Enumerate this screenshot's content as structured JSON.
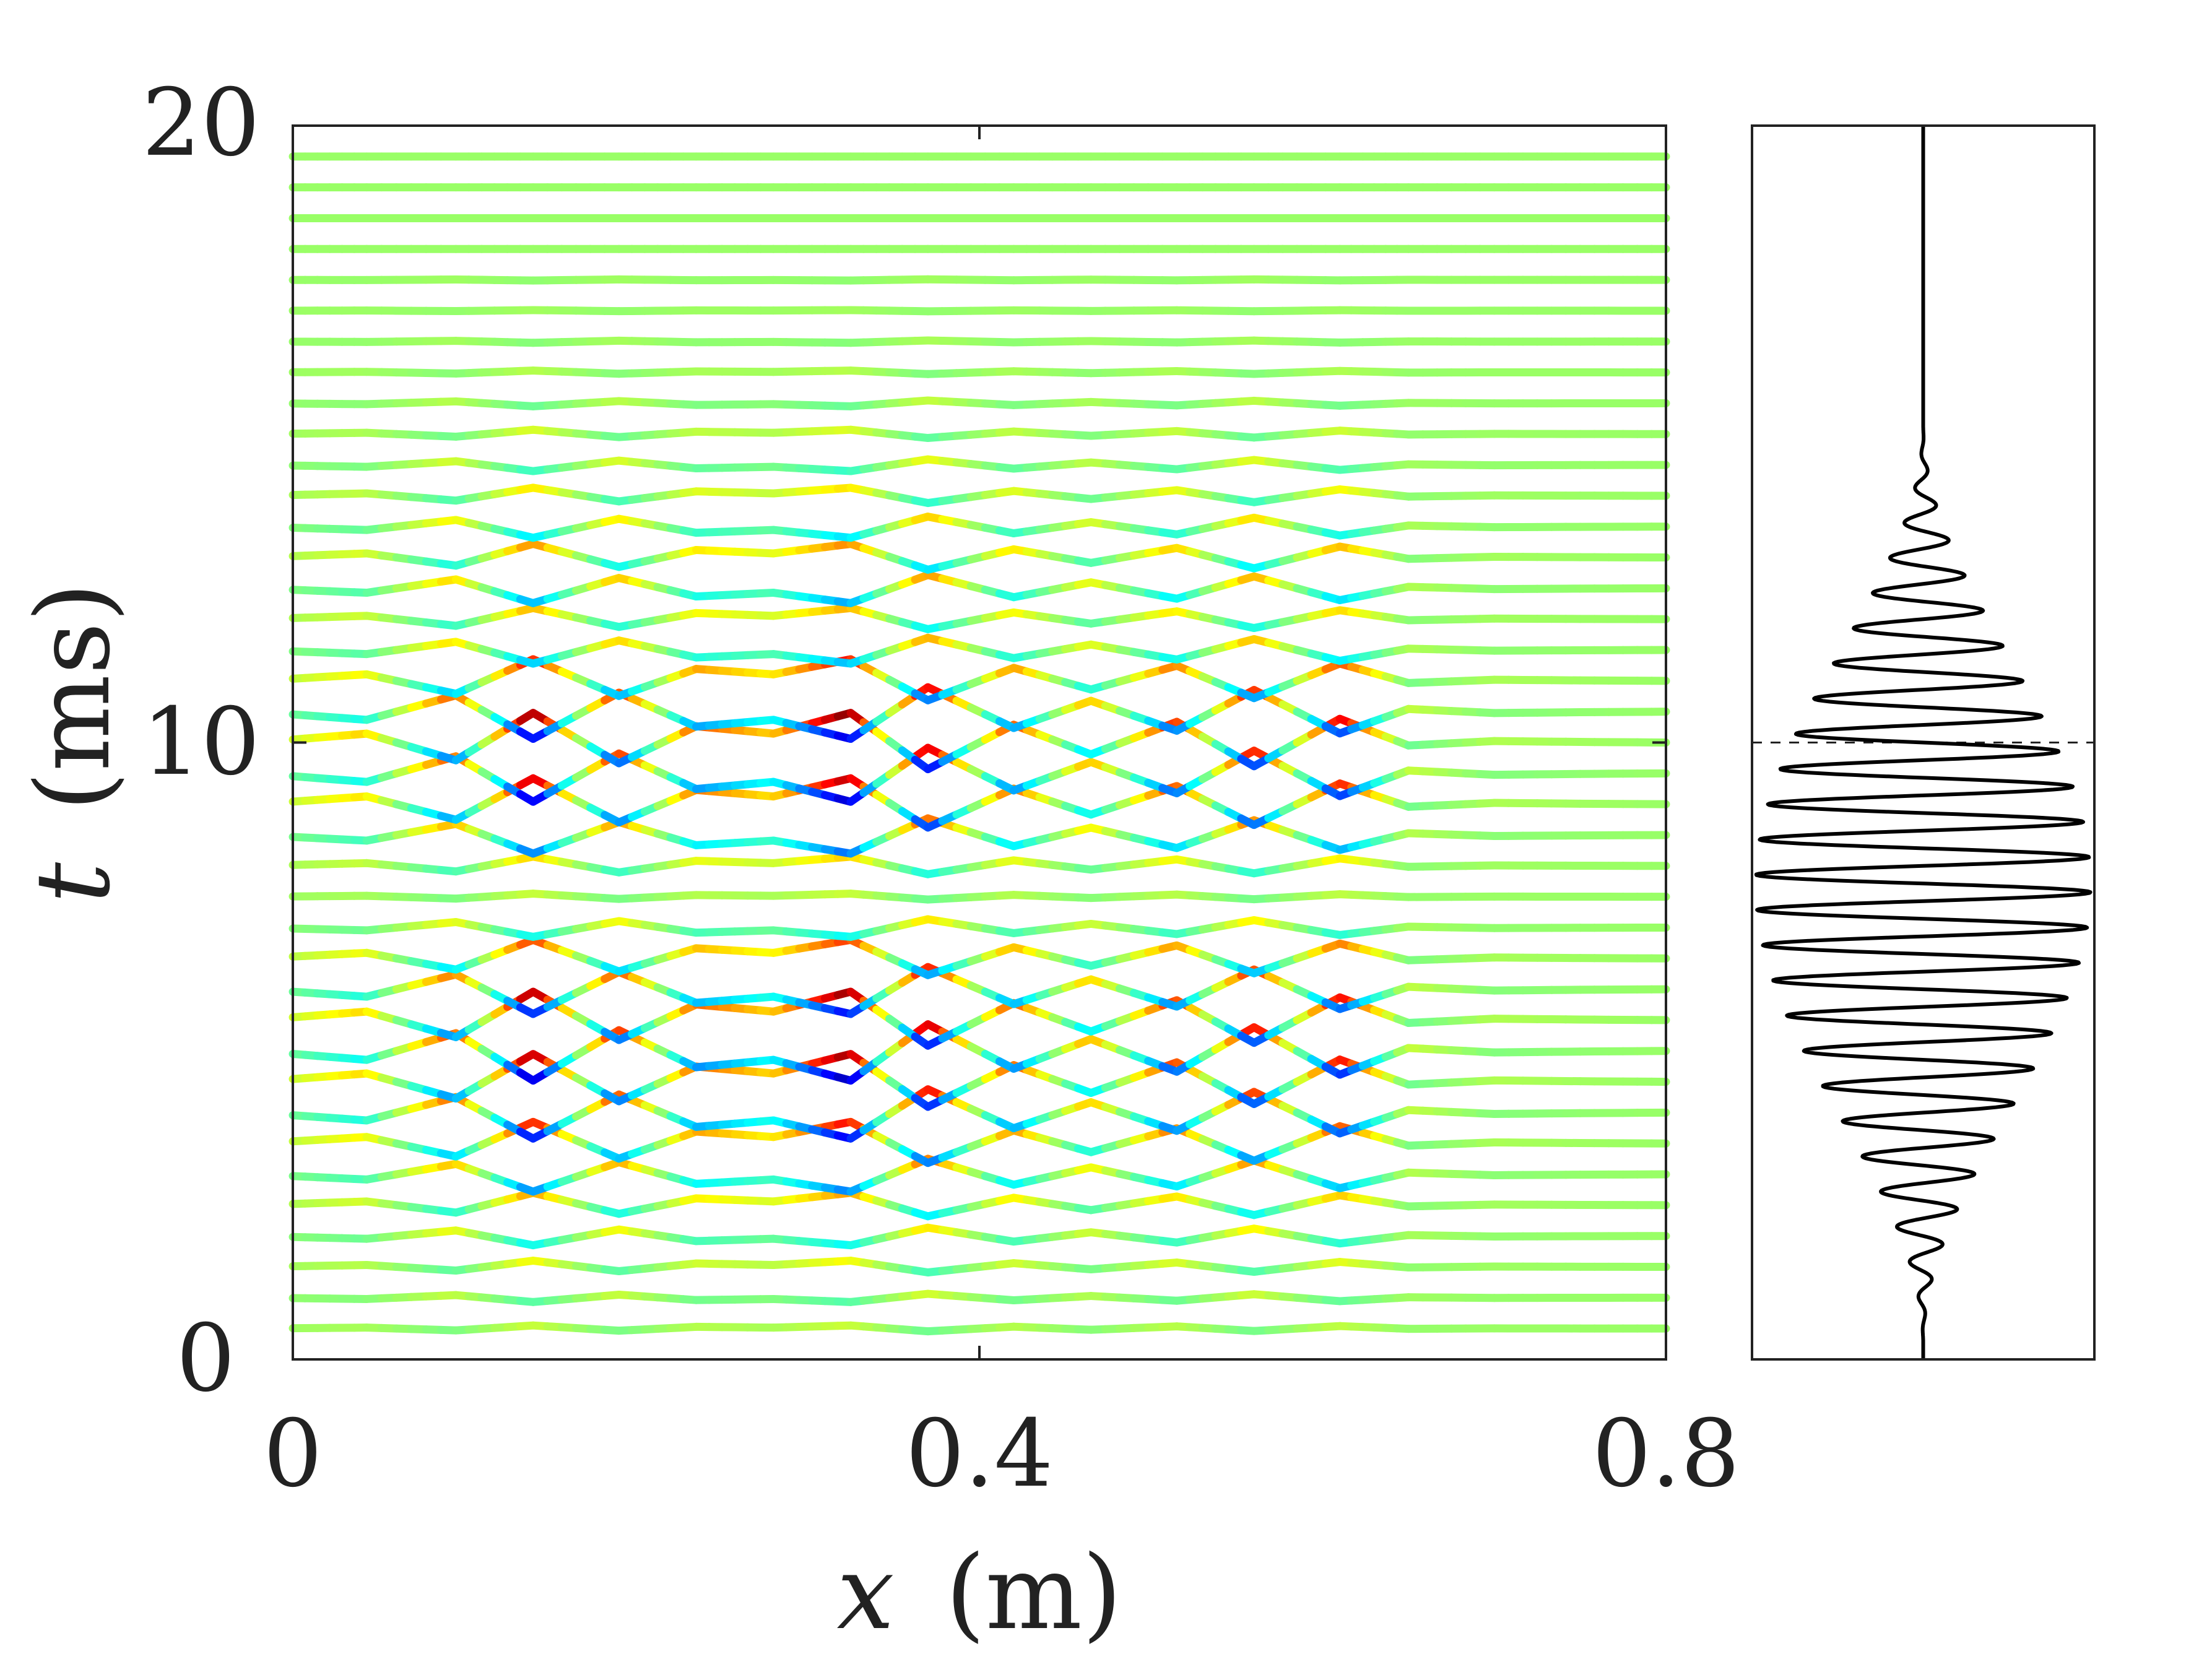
{
  "chart_data": [
    {
      "type": "line",
      "panel": "main",
      "xlabel_var": "x",
      "xlabel_unit": "(m)",
      "ylabel_var": "t",
      "ylabel_unit": "(ms)",
      "xlim": [
        0,
        0.8
      ],
      "ylim": [
        0,
        20
      ],
      "xticks": [
        "0",
        "0.4",
        "0.8"
      ],
      "yticks": [
        "0",
        "10",
        "20"
      ],
      "grid": false,
      "colormap": "jet",
      "description": "Stacked displacement traces u(x) along a 0.8 m line, one trace every 0.5 ms; trace colour encodes local displacement (red = positive, blue = negative). Two wave bursts centred near t = 6 ms and t = 10 ms over x = 0.05 to 0.62 m.",
      "x_nodes": [
        0.0,
        0.043,
        0.095,
        0.14,
        0.19,
        0.235,
        0.28,
        0.325,
        0.37,
        0.42,
        0.465,
        0.515,
        0.56,
        0.61,
        0.65,
        0.7,
        0.75,
        0.8
      ],
      "node_pattern": [
        0.1,
        0.3,
        -0.6,
        1.0,
        -0.7,
        0.55,
        0.3,
        1.0,
        -0.9,
        0.6,
        -0.4,
        0.7,
        -0.8,
        0.8,
        -0.1,
        0.05,
        0.02,
        0.0
      ],
      "trace_times_ms": [
        0.5,
        1.0,
        1.5,
        2.0,
        2.5,
        3.0,
        3.5,
        4.0,
        4.5,
        5.0,
        5.5,
        6.0,
        6.5,
        7.0,
        7.5,
        8.0,
        8.5,
        9.0,
        9.5,
        10.0,
        10.5,
        11.0,
        11.5,
        12.0,
        12.5,
        13.0,
        13.5,
        14.0,
        14.5,
        15.0,
        15.5,
        16.0,
        16.5,
        17.0,
        17.5,
        18.0,
        18.5,
        19.0,
        19.5
      ],
      "trace_amplitude_ms": [
        0.05,
        0.07,
        0.1,
        0.15,
        0.2,
        0.28,
        0.35,
        0.42,
        0.45,
        0.48,
        0.46,
        0.4,
        0.3,
        0.15,
        0.05,
        0.15,
        0.3,
        0.42,
        0.46,
        0.48,
        0.44,
        0.35,
        0.22,
        0.18,
        0.24,
        0.22,
        0.18,
        0.13,
        0.1,
        0.07,
        0.05,
        0.03,
        0.02,
        0.01,
        0.01,
        0.0,
        0.0,
        0.0,
        0.0
      ],
      "trace_sign": [
        1,
        -1,
        1,
        -1,
        1,
        -1,
        1,
        -1,
        1,
        -1,
        1,
        -1,
        1,
        -1,
        1,
        1,
        -1,
        1,
        -1,
        1,
        -1,
        1,
        -1,
        1,
        -1,
        1,
        -1,
        1,
        -1,
        1,
        -1,
        1,
        -1,
        1,
        -1,
        1,
        -1,
        1,
        -1
      ]
    },
    {
      "type": "line",
      "panel": "excitation-signal",
      "description": "Windowed tone burst (excitation time signal) plotted vertically against the same time axis; envelope peaks near t = 7.5 ms, signal near zero above about 14.5 ms.",
      "ylim": [
        0,
        20
      ],
      "reference_time_ms": 10,
      "reference_line_style": "dashed",
      "envelope_center_ms": 7.7,
      "envelope_halfwidth_ms": 7.5,
      "cycles_per_ms": 1.75,
      "peak_amplitude": 1.0,
      "color": "#000000"
    }
  ]
}
